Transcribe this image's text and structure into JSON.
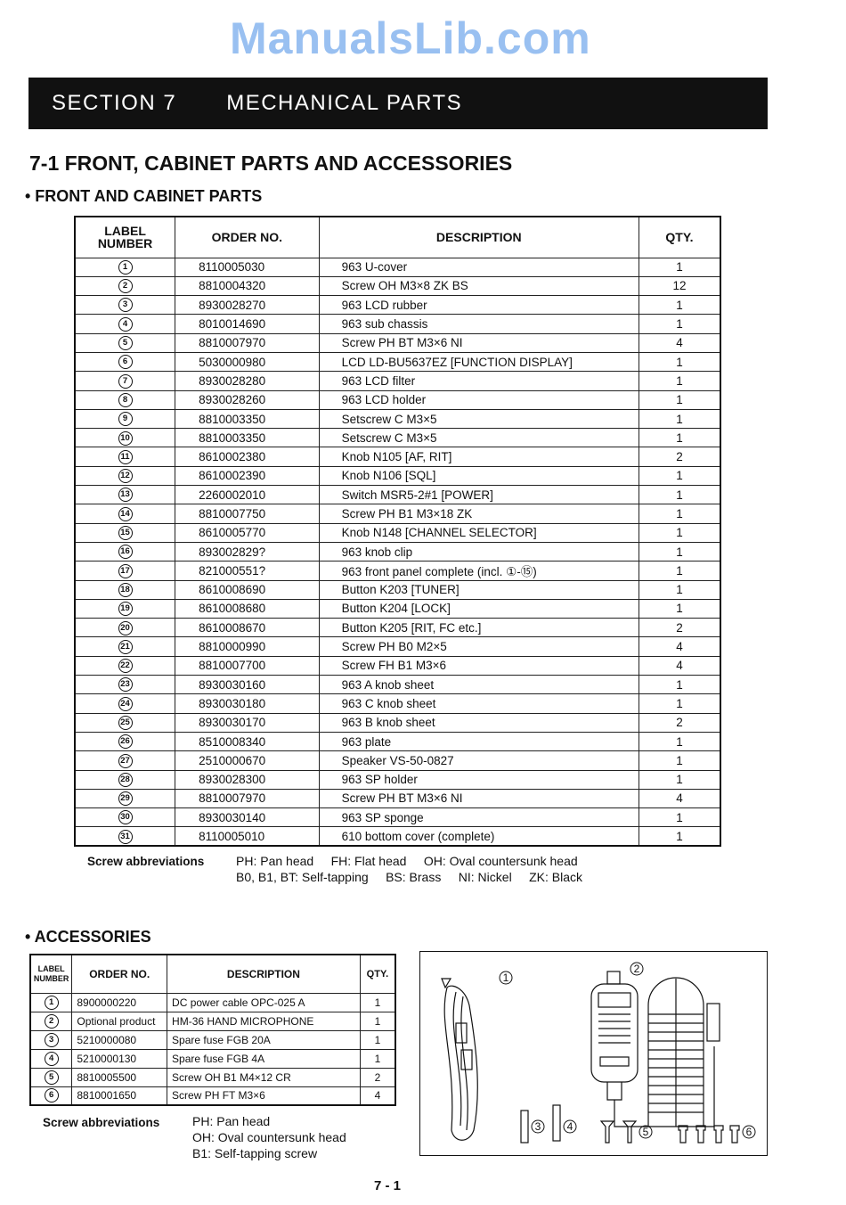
{
  "section": {
    "number": "SECTION 7",
    "title": "MECHANICAL PARTS"
  },
  "heading": "7-1 FRONT, CABINET PARTS AND ACCESSORIES",
  "front": {
    "heading": "• FRONT AND CABINET PARTS",
    "columns": [
      "LABEL NUMBER",
      "ORDER NO.",
      "DESCRIPTION",
      "QTY."
    ],
    "rows": [
      [
        "1",
        "8110005030",
        "963 U-cover",
        "1"
      ],
      [
        "2",
        "8810004320",
        "Screw OH M3×8 ZK BS",
        "12"
      ],
      [
        "3",
        "8930028270",
        "963 LCD rubber",
        "1"
      ],
      [
        "4",
        "8010014690",
        "963 sub chassis",
        "1"
      ],
      [
        "5",
        "8810007970",
        "Screw PH BT M3×6 NI",
        "4"
      ],
      [
        "6",
        "5030000980",
        "LCD LD-BU5637EZ [FUNCTION DISPLAY]",
        "1"
      ],
      [
        "7",
        "8930028280",
        "963 LCD filter",
        "1"
      ],
      [
        "8",
        "8930028260",
        "963 LCD holder",
        "1"
      ],
      [
        "9",
        "8810003350",
        "Setscrew C M3×5",
        "1"
      ],
      [
        "10",
        "8810003350",
        "Setscrew C M3×5",
        "1"
      ],
      [
        "11",
        "8610002380",
        "Knob N105 [AF, RIT]",
        "2"
      ],
      [
        "12",
        "8610002390",
        "Knob N106 [SQL]",
        "1"
      ],
      [
        "13",
        "2260002010",
        "Switch MSR5-2#1 [POWER]",
        "1"
      ],
      [
        "14",
        "8810007750",
        "Screw PH B1 M3×18 ZK",
        "1"
      ],
      [
        "15",
        "8610005770",
        "Knob N148 [CHANNEL SELECTOR]",
        "1"
      ],
      [
        "16",
        "893002829?",
        "963 knob clip",
        "1"
      ],
      [
        "17",
        "821000551?",
        "963 front panel complete (incl. ①-⑮)",
        "1"
      ],
      [
        "18",
        "8610008690",
        "Button K203 [TUNER]",
        "1"
      ],
      [
        "19",
        "8610008680",
        "Button K204 [LOCK]",
        "1"
      ],
      [
        "20",
        "8610008670",
        "Button K205 [RIT, FC etc.]",
        "2"
      ],
      [
        "21",
        "8810000990",
        "Screw PH B0 M2×5",
        "4"
      ],
      [
        "22",
        "8810007700",
        "Screw FH B1 M3×6",
        "4"
      ],
      [
        "23",
        "8930030160",
        "963 A knob sheet",
        "1"
      ],
      [
        "24",
        "8930030180",
        "963 C knob sheet",
        "1"
      ],
      [
        "25",
        "8930030170",
        "963 B knob sheet",
        "2"
      ],
      [
        "26",
        "8510008340",
        "963 plate",
        "1"
      ],
      [
        "27",
        "2510000670",
        "Speaker VS-50-0827",
        "1"
      ],
      [
        "28",
        "8930028300",
        "963 SP holder",
        "1"
      ],
      [
        "29",
        "8810007970",
        "Screw PH BT M3×6 NI",
        "4"
      ],
      [
        "30",
        "8930030140",
        "963 SP sponge",
        "1"
      ],
      [
        "31",
        "8110005010",
        "610 bottom cover (complete)",
        "1"
      ]
    ],
    "abbr_label": "Screw abbreviations",
    "abbr_line1": "PH: Pan head     FH: Flat head     OH: Oval countersunk head",
    "abbr_line2": "B0, B1, BT: Self-tapping     BS: Brass     NI: Nickel     ZK: Black"
  },
  "accessories": {
    "heading": "• ACCESSORIES",
    "columns": [
      "LABEL NUMBER",
      "ORDER NO.",
      "DESCRIPTION",
      "QTY."
    ],
    "rows": [
      [
        "1",
        "8900000220",
        "DC power cable OPC-025 A",
        "1"
      ],
      [
        "2",
        "Optional product",
        "HM-36 HAND MICROPHONE",
        "1"
      ],
      [
        "3",
        "5210000080",
        "Spare fuse FGB 20A",
        "1"
      ],
      [
        "4",
        "5210000130",
        "Spare fuse FGB 4A",
        "1"
      ],
      [
        "5",
        "8810005500",
        "Screw OH B1 M4×12 CR",
        "2"
      ],
      [
        "6",
        "8810001650",
        "Screw PH FT M3×6",
        "4"
      ]
    ],
    "abbr_label": "Screw abbreviations",
    "abbr_lines": [
      "PH: Pan head",
      "OH: Oval countersunk head",
      "B1: Self-tapping screw"
    ],
    "figure_labels": [
      "1",
      "2",
      "3",
      "4",
      "5",
      "6"
    ]
  },
  "watermark": "ManualsLib.com",
  "page_number": "7 - 1"
}
